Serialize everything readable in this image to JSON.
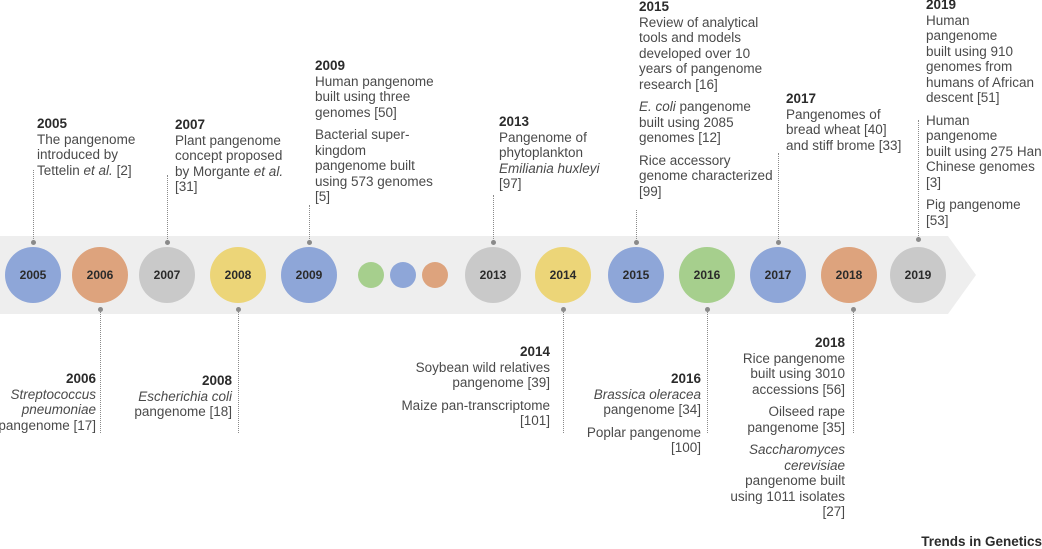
{
  "colors": {
    "band": "#eeeeee",
    "blue": "#8ea6d8",
    "orange": "#dda37d",
    "gray": "#c9c9c9",
    "yellow": "#ecd578",
    "green": "#a6cf8d"
  },
  "circles": [
    {
      "label": "2005",
      "color": "blue"
    },
    {
      "label": "2006",
      "color": "orange"
    },
    {
      "label": "2007",
      "color": "gray"
    },
    {
      "label": "2008",
      "color": "yellow"
    },
    {
      "label": "2009",
      "color": "blue"
    },
    {
      "label": "2013",
      "color": "gray"
    },
    {
      "label": "2014",
      "color": "yellow"
    },
    {
      "label": "2015",
      "color": "blue"
    },
    {
      "label": "2016",
      "color": "green"
    },
    {
      "label": "2017",
      "color": "blue"
    },
    {
      "label": "2018",
      "color": "orange"
    },
    {
      "label": "2019",
      "color": "gray"
    }
  ],
  "ellipsis_dots": [
    "green",
    "blue",
    "orange"
  ],
  "top": {
    "y2005": {
      "year": "2005",
      "text": "The pangenome\nintroduced by\nTettelin ",
      "etal": "et al.",
      "ref": " [2]"
    },
    "y2007": {
      "year": "2007",
      "text": "Plant pangenome\nconcept proposed\nby Morgante ",
      "etal": "et al.",
      "ref": "\n[31]"
    },
    "y2009": {
      "year": "2009",
      "p1": "Human pangenome\nbuilt using three\ngenomes [50]",
      "p2": "Bacterial super-\nkingdom\npangenome built\nusing 573 genomes\n[5]"
    },
    "y2013": {
      "year": "2013",
      "text": "Pangenome of\nphytoplankton",
      "species": "Emiliania huxleyi",
      "ref": "[97]"
    },
    "y2015": {
      "year": "2015",
      "p1": "Review of analytical\ntools and models\ndeveloped over 10\nyears of pangenome\nresearch [16]",
      "p2_species": "E. coli",
      "p2": " pangenome\nbuilt using 2085\ngenomes [12]",
      "p3": "Rice accessory\ngenome characterized\n[99]"
    },
    "y2017": {
      "year": "2017",
      "text": "Pangenomes of\nbread wheat [40]\nand stiff brome [33]"
    },
    "y2019": {
      "year": "2019",
      "p1": "Human pangenome\nbuilt using 910\ngenomes from\nhumans of African\ndescent [51]",
      "p2": "Human pangenome\nbuilt using 275 Han\nChinese genomes\n[3]",
      "p3": "Pig pangenome\n[53]"
    }
  },
  "bottom": {
    "y2006": {
      "year": "2006",
      "species": "Streptococcus\npneumoniae",
      "text": "pangenome [17]"
    },
    "y2008": {
      "year": "2008",
      "species": "Escherichia coli",
      "text": "pangenome [18]"
    },
    "y2014": {
      "year": "2014",
      "p1": "Soybean wild relatives\npangenome [39]",
      "p2": "Maize pan-transcriptome\n[101]"
    },
    "y2016": {
      "year": "2016",
      "species": "Brassica oleracea",
      "text": "pangenome [34]",
      "p2": "Poplar pangenome\n[100]"
    },
    "y2018": {
      "year": "2018",
      "p1": "Rice pangenome\nbuilt using 3010\naccessions [56]",
      "p2": "Oilseed rape\npangenome [35]",
      "p3_species": "Saccharomyces\ncerevisiae",
      "p3": "pangenome built\nusing 1011 isolates\n[27]"
    }
  },
  "credit": "Trends in Genetics"
}
